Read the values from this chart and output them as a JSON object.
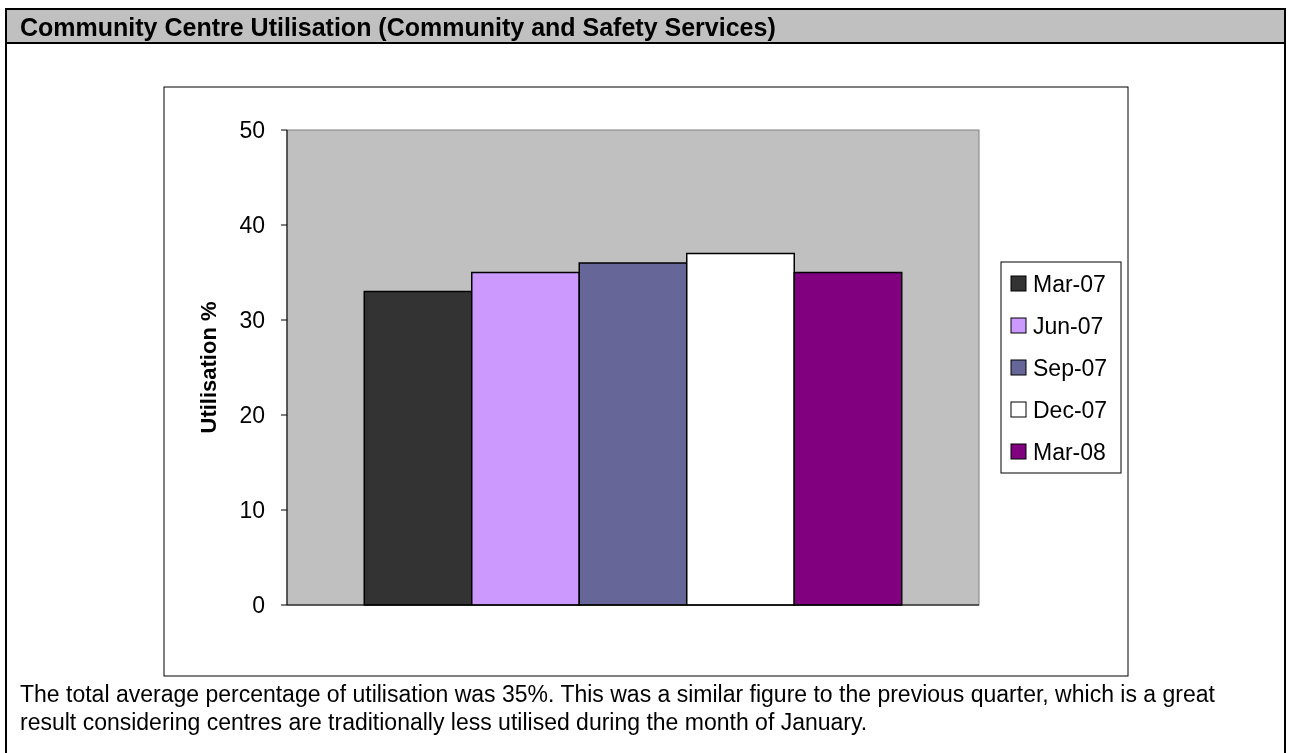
{
  "chart_data": {
    "type": "bar",
    "title": "Community Centre Utilisation (Community and Safety Services)",
    "ylabel": "Utilisation %",
    "categories": [
      null
    ],
    "series": [
      {
        "name": "Mar-07",
        "color": "#333333",
        "values": [
          33
        ]
      },
      {
        "name": "Jun-07",
        "color": "#cc99ff",
        "values": [
          35
        ]
      },
      {
        "name": "Sep-07",
        "color": "#666699",
        "values": [
          36
        ]
      },
      {
        "name": "Dec-07",
        "color": "#ffffff",
        "values": [
          37
        ]
      },
      {
        "name": "Mar-08",
        "color": "#800080",
        "values": [
          35
        ]
      }
    ],
    "ylim": [
      0,
      50
    ],
    "yticks": [
      0,
      10,
      20,
      30,
      40,
      50
    ],
    "grid": false,
    "legend": "right",
    "annotations": [
      "The total average percentage of utilisation was 35%. This was a similar figure to the previous quarter, which is a great result considering centres are traditionally less utilised during the month of January."
    ]
  }
}
